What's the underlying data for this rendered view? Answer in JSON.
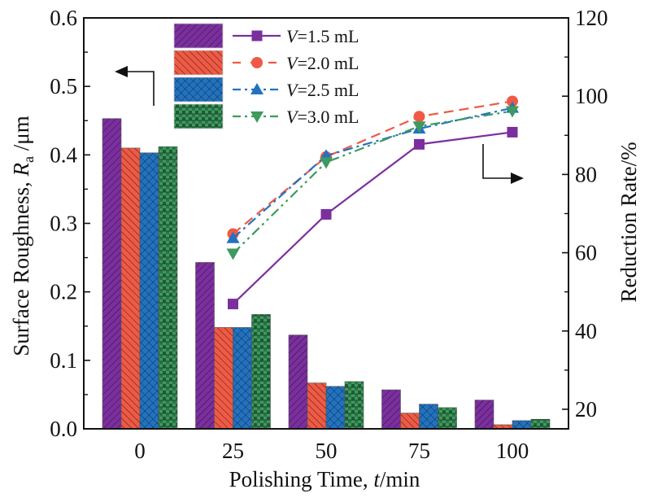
{
  "chart_data": {
    "type": "bar",
    "combo": "bar+line (dual axis)",
    "categories": [
      "0",
      "25",
      "50",
      "75",
      "100"
    ],
    "x": [
      0,
      25,
      50,
      75,
      100
    ],
    "xlabel_parts": [
      "Polishing Time, ",
      "t",
      "/min"
    ],
    "ylabel_left_parts": [
      "Surface Roughness, ",
      "R",
      "a",
      " /μm"
    ],
    "ylabel_right": "Reduction Rate/%",
    "ylim_left": [
      0.0,
      0.6
    ],
    "yticks_left": [
      "0.0",
      "0.1",
      "0.2",
      "0.3",
      "0.4",
      "0.5",
      "0.6"
    ],
    "ylim_right": [
      15,
      120
    ],
    "yticks_right": [
      "20",
      "40",
      "60",
      "80",
      "100",
      "120"
    ],
    "grid": false,
    "legend_position": "top-center",
    "bar_series": [
      {
        "name": "V=1.5 mL",
        "color": "#7b2f9e",
        "pattern": "forward-diagonal",
        "values": [
          0.453,
          0.243,
          0.137,
          0.057,
          0.042
        ]
      },
      {
        "name": "V=2.0 mL",
        "color": "#ee5a45",
        "pattern": "back-diagonal",
        "values": [
          0.41,
          0.148,
          0.067,
          0.023,
          0.006
        ]
      },
      {
        "name": "V=2.5 mL",
        "color": "#2272bf",
        "pattern": "crosshatch",
        "values": [
          0.403,
          0.148,
          0.062,
          0.036,
          0.012
        ]
      },
      {
        "name": "V=3.0 mL",
        "color": "#3e9a5f",
        "pattern": "checker",
        "values": [
          0.412,
          0.167,
          0.069,
          0.031,
          0.014
        ]
      }
    ],
    "line_series": [
      {
        "name": "V=1.5 mL",
        "color": "#7b2f9e",
        "marker": "square",
        "dash": "solid",
        "x": [
          25,
          50,
          75,
          100
        ],
        "values": [
          46.9,
          69.8,
          87.7,
          90.8
        ]
      },
      {
        "name": "V=2.0 mL",
        "color": "#ee5a45",
        "marker": "circle",
        "dash": "dashed",
        "x": [
          25,
          50,
          75,
          100
        ],
        "values": [
          64.8,
          84.5,
          94.8,
          98.7
        ]
      },
      {
        "name": "V=2.5 mL",
        "color": "#2272bf",
        "marker": "triangle-up",
        "dash": "dash-dot",
        "x": [
          25,
          50,
          75,
          100
        ],
        "values": [
          63.7,
          84.8,
          91.7,
          97.0
        ]
      },
      {
        "name": "V=3.0 mL",
        "color": "#3e9a5f",
        "marker": "triangle-down",
        "dash": "dash-dot-dot",
        "x": [
          25,
          50,
          75,
          100
        ],
        "values": [
          59.8,
          83.1,
          92.3,
          96.2
        ]
      }
    ],
    "legend": [
      {
        "prefix": "V",
        "suffix": "=1.5 mL"
      },
      {
        "prefix": "V",
        "suffix": "=2.0 mL"
      },
      {
        "prefix": "V",
        "suffix": "=2.5 mL"
      },
      {
        "prefix": "V",
        "suffix": "=3.0 mL"
      }
    ],
    "annotations": [
      {
        "type": "arrow",
        "meaning": "bars refer to left axis",
        "direction": "left"
      },
      {
        "type": "arrow",
        "meaning": "lines refer to right axis",
        "direction": "right"
      }
    ]
  }
}
